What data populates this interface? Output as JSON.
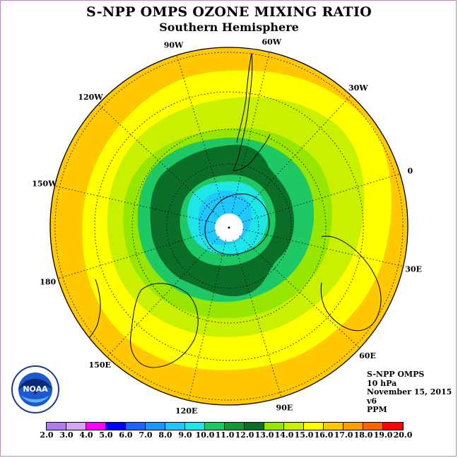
{
  "title": "S-NPP OMPS OZONE MIXING RATIO",
  "subtitle": "Southern Hemisphere",
  "longitude_labels": [
    "90W",
    "60W",
    "30W",
    "0",
    "30E",
    "60E",
    "90E",
    "120E",
    "150E",
    "180",
    "150W",
    "120W"
  ],
  "info": {
    "instrument": "S-NPP OMPS",
    "level": "10 hPa",
    "date": "November 15, 2015",
    "version": "v6",
    "units": "PPM"
  },
  "logo": {
    "text": "NOAA",
    "icon": "noaa-logo-icon"
  },
  "colorbar": {
    "labels": [
      "2.0",
      "3.0",
      "4.0",
      "5.0",
      "6.0",
      "7.0",
      "8.0",
      "9.0",
      "10.0",
      "11.0",
      "12.0",
      "13.0",
      "14.0",
      "15.0",
      "16.0",
      "17.0",
      "18.0",
      "19.0",
      "20.0"
    ],
    "colors": [
      "#b07cf0",
      "#d4a6f4",
      "#ff00ff",
      "#0000ff",
      "#1e64ff",
      "#1e96ff",
      "#1ec8ff",
      "#1ee6e6",
      "#1ec864",
      "#149632",
      "#0a6e28",
      "#96e600",
      "#c8f000",
      "#ffff00",
      "#ffc800",
      "#ffa000",
      "#ff6400",
      "#ff0000",
      "#8c5a3c"
    ]
  }
}
